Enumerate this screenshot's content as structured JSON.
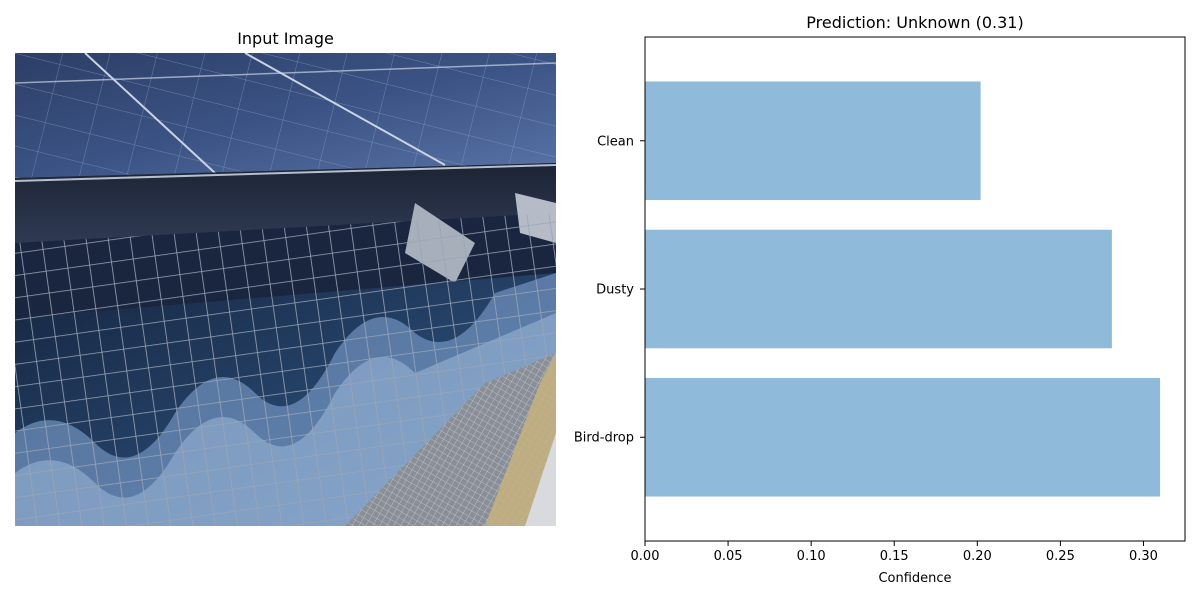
{
  "left_panel": {
    "title": "Input Image"
  },
  "right_panel": {
    "title": "Prediction: Unknown (0.31)"
  },
  "colors": {
    "bar": "#8fbad9",
    "axis": "#000000"
  },
  "chart_data": {
    "type": "bar",
    "orientation": "horizontal",
    "title": "Prediction: Unknown (0.31)",
    "xlabel": "Confidence",
    "ylabel": "",
    "categories": [
      "Bird-drop",
      "Dusty",
      "Clean"
    ],
    "values": [
      0.31,
      0.281,
      0.202
    ],
    "xlim": [
      0,
      0.325
    ],
    "xticks": [
      "0.00",
      "0.05",
      "0.10",
      "0.15",
      "0.20",
      "0.25",
      "0.30"
    ],
    "grid": false,
    "legend": false
  }
}
